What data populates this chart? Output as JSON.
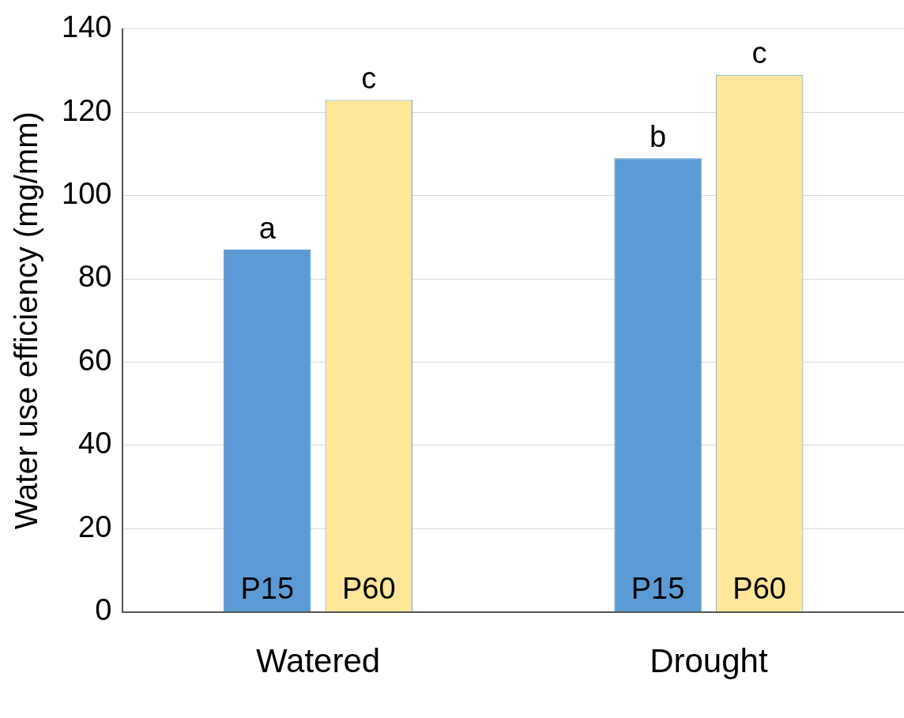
{
  "chart_data": {
    "type": "bar",
    "ylabel": "Water use efficiency (mg/mm)",
    "categories": [
      "Watered",
      "Drought"
    ],
    "series": [
      {
        "name": "P15",
        "color": "#5b9bd5",
        "values": [
          87,
          109
        ],
        "value_labels": [
          "a",
          "b"
        ]
      },
      {
        "name": "P60",
        "color": "#ffe699",
        "values": [
          123,
          129
        ],
        "value_labels": [
          "c",
          "c"
        ]
      }
    ],
    "ylim": [
      0,
      140
    ],
    "yticks": [
      0,
      20,
      40,
      60,
      80,
      100,
      120,
      140
    ],
    "grid": "y",
    "legend": false
  }
}
